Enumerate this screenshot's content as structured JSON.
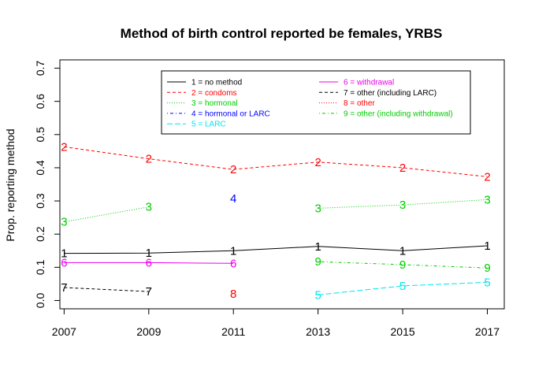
{
  "chart_data": {
    "type": "line",
    "title": "Method of birth control reported be females, YRBS",
    "xlabel": "",
    "ylabel": "Prop. reporting method",
    "x": [
      2007,
      2009,
      2011,
      2013,
      2015,
      2017
    ],
    "x_ticks": [
      "2007",
      "2009",
      "2011",
      "2013",
      "2015",
      "2017"
    ],
    "y_ticks": [
      "0.0",
      "0.1",
      "0.2",
      "0.3",
      "0.4",
      "0.5",
      "0.6",
      "0.7"
    ],
    "xlim": [
      2006.9,
      2017.4
    ],
    "ylim": [
      -0.025,
      0.725
    ],
    "grid": false,
    "legend_position": "top-center",
    "series": [
      {
        "id": "1",
        "name": "1 = no method",
        "color": "#000000",
        "dash": "solid",
        "values": [
          0.142,
          0.143,
          0.15,
          0.163,
          0.15,
          0.165
        ]
      },
      {
        "id": "2",
        "name": "2 = condoms",
        "color": "#ff0000",
        "dash": "dashed",
        "values": [
          0.463,
          0.427,
          0.395,
          0.417,
          0.4,
          0.373
        ]
      },
      {
        "id": "3",
        "name": "3 = hormonal",
        "color": "#00cc00",
        "dash": "dotted",
        "values": [
          0.237,
          0.282,
          null,
          0.278,
          0.288,
          0.304
        ]
      },
      {
        "id": "4",
        "name": "4 = hormonal or LARC",
        "color": "#0000ff",
        "dash": "dotdash",
        "values": [
          null,
          null,
          0.307,
          null,
          null,
          null
        ]
      },
      {
        "id": "5",
        "name": "5 = LARC",
        "color": "#00e5ee",
        "dash": "longdash",
        "values": [
          null,
          null,
          null,
          0.017,
          0.044,
          0.055
        ]
      },
      {
        "id": "6",
        "name": "6 = withdrawal",
        "color": "#ee00ee",
        "dash": "solid",
        "values": [
          0.114,
          0.114,
          0.112,
          null,
          null,
          null
        ]
      },
      {
        "id": "7",
        "name": "7 = other (including LARC)",
        "color": "#000000",
        "dash": "dashed",
        "values": [
          0.039,
          0.027,
          null,
          null,
          null,
          null
        ]
      },
      {
        "id": "8",
        "name": "8 = other",
        "color": "#ff0000",
        "dash": "dotted",
        "values": [
          null,
          null,
          0.02,
          null,
          null,
          null
        ]
      },
      {
        "id": "9",
        "name": "9 = other (including withdrawal)",
        "color": "#00cc00",
        "dash": "dotdash",
        "values": [
          null,
          null,
          null,
          0.117,
          0.108,
          0.098
        ]
      }
    ]
  }
}
